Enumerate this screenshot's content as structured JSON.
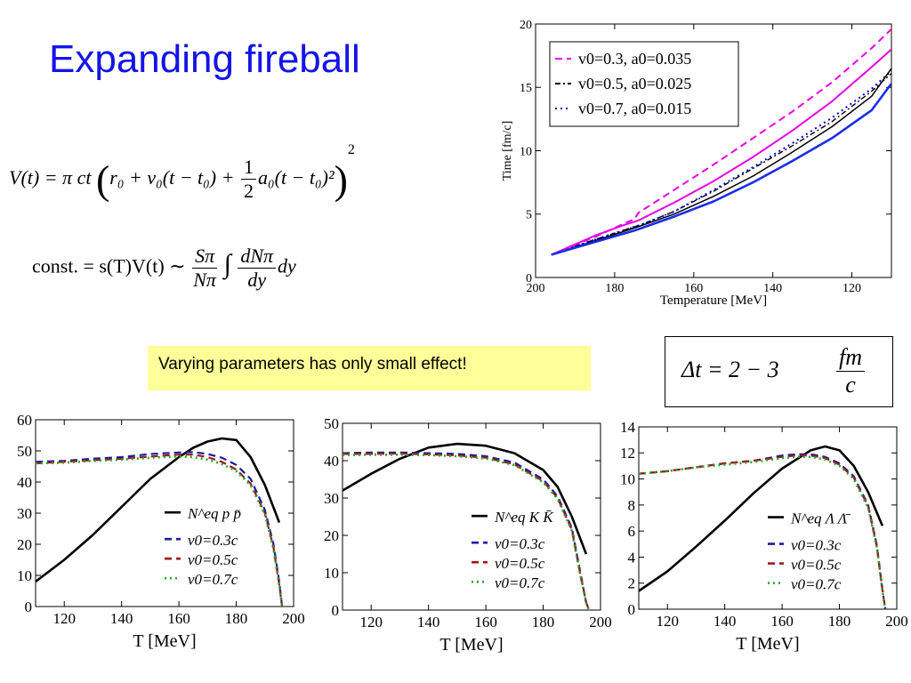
{
  "title": "Expanding fireball",
  "equation1": {
    "lhs": "V(t) = π ct",
    "inner": "r₀ + v₀(t − t₀) + ",
    "frac_num": "1",
    "frac_den": "2",
    "inner_end": "a₀(t − t₀)²",
    "power": "2"
  },
  "equation2": {
    "lhs": "const. = s(T)V(t) ∼",
    "f1_num": "Sπ",
    "f1_den": "Nπ",
    "integral": "∫",
    "f2_num": "dNπ",
    "f2_den": "dy",
    "tail": "dy"
  },
  "callout": "Varying parameters has only small effect!",
  "delta_t": {
    "lhs": "Δt = 2 − 3",
    "num": "fm",
    "den": "c"
  },
  "chart_data": [
    {
      "type": "line",
      "xlabel": "Temperature [MeV]",
      "ylabel": "Time [fm/c]",
      "xlim": [
        200,
        110
      ],
      "ylim": [
        0,
        20
      ],
      "xticks": [
        200,
        180,
        160,
        140,
        120
      ],
      "yticks": [
        0,
        5,
        10,
        15,
        20
      ],
      "grid": false,
      "legend_position": "top-left",
      "series": [
        {
          "name": "v0=0.3, a0=0.035",
          "color": "#e600e6",
          "style": "dashed",
          "x": [
            196,
            185,
            178,
            175,
            174,
            165,
            155,
            145,
            135,
            125,
            115,
            110
          ],
          "y": [
            1.8,
            3.2,
            4.2,
            4.6,
            5.1,
            6.9,
            8.9,
            11.0,
            13.1,
            15.4,
            18.1,
            19.6
          ]
        },
        {
          "name": "v0=0.5, a0=0.025",
          "color": "#000000",
          "style": "dashdot",
          "x": [
            196,
            185,
            178,
            173,
            165,
            155,
            145,
            135,
            125,
            115,
            110
          ],
          "y": [
            1.8,
            3.0,
            3.7,
            4.2,
            5.2,
            6.8,
            8.6,
            10.4,
            12.3,
            14.7,
            16.1
          ]
        },
        {
          "name": "v0=0.7, a0=0.015",
          "color": "#0000ee",
          "style": "dotted",
          "x": [
            196,
            185,
            178,
            173,
            165,
            155,
            145,
            135,
            125,
            115,
            110
          ],
          "y": [
            1.8,
            3.0,
            3.7,
            4.2,
            5.2,
            6.9,
            8.7,
            10.6,
            12.6,
            14.9,
            16.3
          ]
        },
        {
          "name": "",
          "color": "#e600e6",
          "style": "solid",
          "x": [
            196,
            185,
            178,
            174,
            165,
            155,
            145,
            135,
            125,
            115,
            110
          ],
          "y": [
            1.8,
            3.3,
            4.1,
            4.5,
            5.9,
            7.6,
            9.5,
            11.6,
            13.9,
            16.6,
            18.0
          ]
        },
        {
          "name": "",
          "color": "#000000",
          "style": "solid",
          "x": [
            196,
            185,
            175,
            165,
            155,
            145,
            135,
            125,
            115,
            110
          ],
          "y": [
            1.8,
            2.9,
            3.9,
            5.0,
            6.4,
            8.0,
            9.9,
            11.9,
            14.3,
            16.5
          ]
        },
        {
          "name": "",
          "color": "#1a2ee6",
          "style": "solid",
          "x": [
            196,
            185,
            175,
            165,
            155,
            145,
            135,
            125,
            115,
            110
          ],
          "y": [
            1.8,
            2.8,
            3.7,
            4.8,
            6.0,
            7.5,
            9.2,
            11.0,
            13.2,
            15.3
          ]
        }
      ]
    },
    {
      "type": "line",
      "xlabel": "T [MeV]",
      "ylabel": "",
      "xlim": [
        110,
        200
      ],
      "ylim": [
        0,
        60
      ],
      "xticks": [
        120,
        140,
        160,
        180,
        200
      ],
      "yticks": [
        0,
        10,
        20,
        30,
        40,
        50,
        60
      ],
      "grid": false,
      "legend_position": "right",
      "series": [
        {
          "name": "N^eq p p̄",
          "color": "#000000",
          "style": "solid",
          "x": [
            110,
            120,
            130,
            140,
            150,
            160,
            165,
            170,
            175,
            180,
            185,
            190,
            195
          ],
          "y": [
            8,
            15,
            23,
            32,
            41,
            48,
            51,
            53,
            54,
            53.5,
            48,
            39,
            27
          ]
        },
        {
          "name": "v0=0.3c",
          "color": "#1a1aaa",
          "style": "dashed",
          "x": [
            110,
            120,
            130,
            140,
            150,
            160,
            165,
            170,
            175,
            180,
            185,
            190,
            193,
            195,
            196
          ],
          "y": [
            46.5,
            46.8,
            47.5,
            48,
            49,
            49.5,
            49.6,
            49,
            47.8,
            45.5,
            41,
            31,
            20,
            8,
            0
          ]
        },
        {
          "name": "v0=0.5c",
          "color": "#a01818",
          "style": "dashed",
          "x": [
            110,
            120,
            130,
            140,
            150,
            160,
            165,
            170,
            175,
            180,
            185,
            190,
            193,
            195,
            196
          ],
          "y": [
            46,
            46.5,
            47,
            47.5,
            48.2,
            48.8,
            48.8,
            48,
            46.5,
            44,
            39.5,
            30,
            19,
            7,
            0
          ]
        },
        {
          "name": "v0=0.7c",
          "color": "#22aa22",
          "style": "dotted",
          "x": [
            110,
            120,
            130,
            140,
            150,
            160,
            165,
            170,
            175,
            180,
            185,
            190,
            193,
            195,
            196
          ],
          "y": [
            46,
            46.2,
            46.8,
            47.2,
            47.8,
            48.2,
            48,
            47.2,
            45.8,
            43.5,
            39,
            29.5,
            18.5,
            7,
            0
          ]
        }
      ]
    },
    {
      "type": "line",
      "xlabel": "T [MeV]",
      "ylabel": "",
      "xlim": [
        110,
        200
      ],
      "ylim": [
        0,
        50
      ],
      "xticks": [
        120,
        140,
        160,
        180,
        200
      ],
      "yticks": [
        0,
        10,
        20,
        30,
        40,
        50
      ],
      "grid": false,
      "legend_position": "right",
      "series": [
        {
          "name": "N^eq K K̄",
          "color": "#000000",
          "style": "solid",
          "x": [
            110,
            120,
            130,
            140,
            150,
            160,
            170,
            180,
            185,
            190,
            195
          ],
          "y": [
            32,
            36.5,
            40.5,
            43.5,
            44.5,
            44,
            42,
            37.5,
            33,
            25,
            15
          ]
        },
        {
          "name": "v0=0.3c",
          "color": "#1a1aaa",
          "style": "dashed",
          "x": [
            110,
            120,
            130,
            140,
            150,
            160,
            170,
            180,
            185,
            190,
            193,
            195,
            196
          ],
          "y": [
            42,
            42.2,
            42.2,
            42,
            41.8,
            41.2,
            39.5,
            35,
            30.5,
            22,
            10,
            2,
            0
          ]
        },
        {
          "name": "v0=0.5c",
          "color": "#a01818",
          "style": "dashed",
          "x": [
            110,
            120,
            130,
            140,
            150,
            160,
            170,
            180,
            185,
            190,
            193,
            195,
            196
          ],
          "y": [
            41.8,
            41.8,
            41.9,
            41.7,
            41.4,
            40.8,
            39,
            34.5,
            30,
            21.5,
            9.5,
            2,
            0
          ]
        },
        {
          "name": "v0=0.7c",
          "color": "#22aa22",
          "style": "dotted",
          "x": [
            110,
            120,
            130,
            140,
            150,
            160,
            170,
            180,
            185,
            190,
            193,
            195,
            196
          ],
          "y": [
            41.5,
            41.6,
            41.6,
            41.5,
            41.2,
            40.6,
            38.8,
            34.2,
            29.8,
            21.2,
            9.2,
            2,
            0
          ]
        }
      ]
    },
    {
      "type": "line",
      "xlabel": "T [MeV]",
      "ylabel": "",
      "xlim": [
        110,
        200
      ],
      "ylim": [
        0,
        14
      ],
      "xticks": [
        120,
        140,
        160,
        180,
        200
      ],
      "yticks": [
        0,
        2,
        4,
        6,
        8,
        10,
        12,
        14
      ],
      "grid": false,
      "legend_position": "right",
      "series": [
        {
          "name": "N^eq Λ Λ̄",
          "color": "#000000",
          "style": "solid",
          "x": [
            110,
            120,
            130,
            140,
            150,
            160,
            170,
            175,
            180,
            185,
            190,
            195
          ],
          "y": [
            1.4,
            2.9,
            4.8,
            6.8,
            8.9,
            10.8,
            12.2,
            12.5,
            12.2,
            11,
            9,
            6.4
          ]
        },
        {
          "name": "v0=0.3c",
          "color": "#1a1aaa",
          "style": "dashed",
          "x": [
            110,
            120,
            130,
            140,
            150,
            160,
            165,
            170,
            175,
            180,
            185,
            190,
            193,
            195,
            196
          ],
          "y": [
            10.4,
            10.6,
            10.9,
            11.2,
            11.4,
            11.8,
            11.9,
            11.9,
            11.7,
            11.2,
            10.2,
            8,
            5,
            1.5,
            0
          ]
        },
        {
          "name": "v0=0.5c",
          "color": "#a01818",
          "style": "dashed",
          "x": [
            110,
            120,
            130,
            140,
            150,
            160,
            165,
            170,
            175,
            180,
            185,
            190,
            193,
            195,
            196
          ],
          "y": [
            10.4,
            10.6,
            10.9,
            11.2,
            11.4,
            11.7,
            11.8,
            11.8,
            11.6,
            11.1,
            10.1,
            7.9,
            4.9,
            1.5,
            0
          ]
        },
        {
          "name": "v0=0.7c",
          "color": "#22aa22",
          "style": "dotted",
          "x": [
            110,
            120,
            130,
            140,
            150,
            160,
            165,
            170,
            175,
            180,
            185,
            190,
            193,
            195,
            196
          ],
          "y": [
            10.4,
            10.6,
            10.9,
            11.1,
            11.3,
            11.6,
            11.7,
            11.7,
            11.5,
            11,
            10,
            7.8,
            4.8,
            1.4,
            0
          ]
        }
      ]
    }
  ]
}
